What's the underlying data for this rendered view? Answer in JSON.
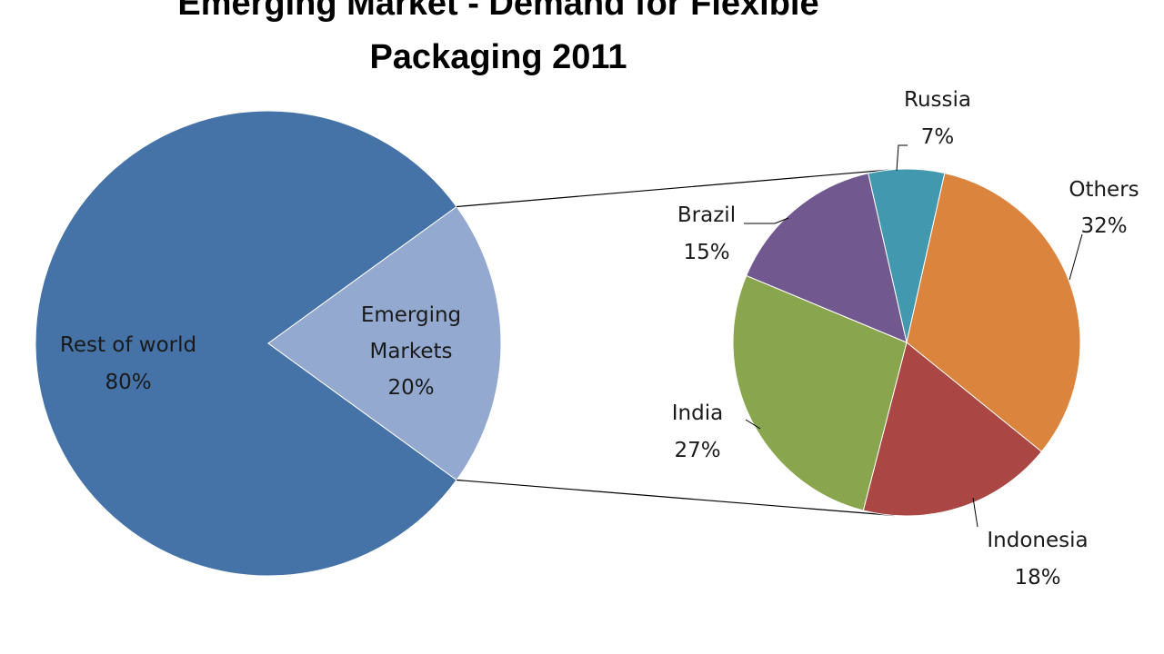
{
  "chart_data": {
    "type": "pie",
    "title_lines": [
      "Emerging Market - Demand for Flexible",
      "Packaging 2011"
    ],
    "main_pie": {
      "slices": [
        {
          "name": "Rest of world",
          "value": 80,
          "label": "80%",
          "color": "#4572A7"
        },
        {
          "name_lines": [
            "Emerging",
            "Markets"
          ],
          "value": 20,
          "label": "20%",
          "color": "#93A9D0"
        }
      ]
    },
    "detail_pie": {
      "slices": [
        {
          "name": "Russia",
          "value": 7,
          "label": "7%",
          "color": "#4198AF"
        },
        {
          "name": "Others",
          "value": 32,
          "label": "32%",
          "color": "#DB843D"
        },
        {
          "name": "Indonesia",
          "value": 18,
          "label": "18%",
          "color": "#AA4643"
        },
        {
          "name": "India",
          "value": 27,
          "label": "27%",
          "color": "#89A54E"
        },
        {
          "name": "Brazil",
          "value": 15,
          "label": "15%",
          "color": "#71588F"
        }
      ]
    }
  }
}
